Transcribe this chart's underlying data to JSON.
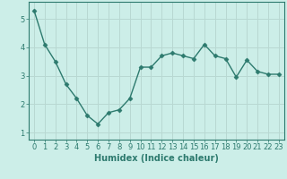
{
  "x": [
    0,
    1,
    2,
    3,
    4,
    5,
    6,
    7,
    8,
    9,
    10,
    11,
    12,
    13,
    14,
    15,
    16,
    17,
    18,
    19,
    20,
    21,
    22,
    23
  ],
  "y": [
    5.3,
    4.1,
    3.5,
    2.7,
    2.2,
    1.6,
    1.3,
    1.7,
    1.8,
    2.2,
    3.3,
    3.3,
    3.7,
    3.8,
    3.7,
    3.6,
    4.1,
    3.7,
    3.6,
    2.95,
    3.55,
    3.15,
    3.05,
    3.05
  ],
  "line_color": "#2d7a6e",
  "marker": "D",
  "marker_size": 2.5,
  "background_color": "#cceee8",
  "grid_color": "#b8d8d2",
  "xlabel": "Humidex (Indice chaleur)",
  "xlim": [
    -0.5,
    23.5
  ],
  "ylim": [
    0.75,
    5.6
  ],
  "yticks": [
    1,
    2,
    3,
    4,
    5
  ],
  "xticks": [
    0,
    1,
    2,
    3,
    4,
    5,
    6,
    7,
    8,
    9,
    10,
    11,
    12,
    13,
    14,
    15,
    16,
    17,
    18,
    19,
    20,
    21,
    22,
    23
  ],
  "xlabel_fontsize": 7,
  "tick_fontsize": 6,
  "axis_color": "#2d7a6e",
  "linewidth": 1.0
}
